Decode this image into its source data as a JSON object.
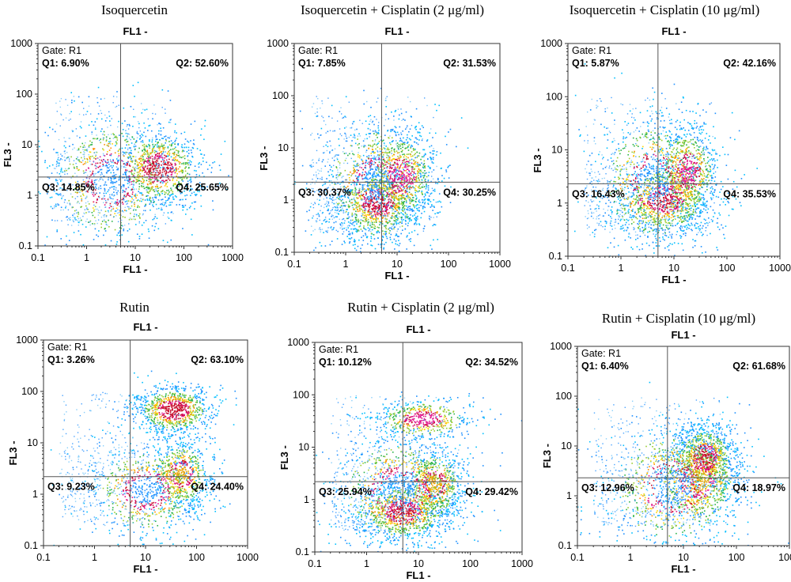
{
  "chart_data": [
    {
      "type": "scatter",
      "title": "Isoquercetin",
      "xlabel": "FL1 -",
      "x2label": "FL1 -",
      "ylabel": "FL3 -",
      "xscale": "log",
      "yscale": "log",
      "xlim": [
        0.1,
        1000
      ],
      "ylim": [
        0.1,
        1000
      ],
      "xticks": [
        "0.1",
        "1",
        "10",
        "100",
        "1000"
      ],
      "yticks": [
        "0.1",
        "1",
        "10",
        "100",
        "1000"
      ],
      "gate": "Gate: R1",
      "quadrant_divider": {
        "x": 5,
        "y": 2.3
      },
      "quadrants": {
        "Q1": "Q1: 6.90%",
        "Q2": "Q2: 52.60%",
        "Q3": "Q3: 14.85%",
        "Q4": "Q4: 25.65%"
      },
      "clusters": [
        {
          "x": 30,
          "y": 3.5,
          "spread_x": 0.45,
          "spread_y": 0.4,
          "weight": 1.0,
          "color": "#c8102e"
        },
        {
          "x": 3,
          "y": 2,
          "spread_x": 0.7,
          "spread_y": 0.7,
          "weight": 0.9,
          "color": "#1e90ff"
        }
      ]
    },
    {
      "type": "scatter",
      "title": "Isoquercetin + Cisplatin (2 μg/ml)",
      "xlabel": "FL1 -",
      "x2label": "FL1 -",
      "ylabel": "FL3 -",
      "xscale": "log",
      "yscale": "log",
      "xlim": [
        0.1,
        1000
      ],
      "ylim": [
        0.1,
        1000
      ],
      "xticks": [
        "0.1",
        "1",
        "10",
        "100",
        "1000"
      ],
      "yticks": [
        "0.1",
        "1",
        "10",
        "100",
        "1000"
      ],
      "gate": "Gate: R1",
      "quadrant_divider": {
        "x": 5,
        "y": 2.2
      },
      "quadrants": {
        "Q1": "Q1: 7.85%",
        "Q2": "Q2: 31.53%",
        "Q3": "Q3: 30.37%",
        "Q4": "Q4: 30.25%"
      },
      "clusters": [
        {
          "x": 4,
          "y": 0.9,
          "spread_x": 0.4,
          "spread_y": 0.35,
          "weight": 1.0,
          "color": "#c8102e"
        },
        {
          "x": 12,
          "y": 3,
          "spread_x": 0.35,
          "spread_y": 0.45,
          "weight": 0.8,
          "color": "#e0148c"
        },
        {
          "x": 4,
          "y": 2,
          "spread_x": 0.6,
          "spread_y": 0.7,
          "weight": 0.9,
          "color": "#1e90ff"
        }
      ]
    },
    {
      "type": "scatter",
      "title": "Isoquercetin + Cisplatin (10 μg/ml)",
      "xlabel": "FL1 -",
      "x2label": "FL1 -",
      "ylabel": "FL3 -",
      "xscale": "log",
      "yscale": "log",
      "xlim": [
        0.1,
        1000
      ],
      "ylim": [
        0.1,
        1000
      ],
      "xticks": [
        "0.1",
        "1",
        "10",
        "100",
        "1000"
      ],
      "yticks": [
        "0.1",
        "1",
        "10",
        "100",
        "1000"
      ],
      "gate": "Gate: R1",
      "quadrant_divider": {
        "x": 5,
        "y": 2.3
      },
      "quadrants": {
        "Q1": "Q1: 5.87%",
        "Q2": "Q2: 42.16%",
        "Q3": "Q3: 16.43%",
        "Q4": "Q4: 35.53%"
      },
      "clusters": [
        {
          "x": 7,
          "y": 1.2,
          "spread_x": 0.45,
          "spread_y": 0.35,
          "weight": 1.0,
          "color": "#c8102e"
        },
        {
          "x": 18,
          "y": 4,
          "spread_x": 0.3,
          "spread_y": 0.45,
          "weight": 0.8,
          "color": "#e0148c"
        },
        {
          "x": 4,
          "y": 2.5,
          "spread_x": 0.6,
          "spread_y": 0.7,
          "weight": 0.9,
          "color": "#1e90ff"
        }
      ]
    },
    {
      "type": "scatter",
      "title": "Rutin",
      "xlabel": "FL1 -",
      "x2label": "FL1 -",
      "ylabel": "FL3 -",
      "xscale": "log",
      "yscale": "log",
      "xlim": [
        0.1,
        1000
      ],
      "ylim": [
        0.1,
        1000
      ],
      "xticks": [
        "0.1",
        "1",
        "10",
        "100",
        "1000"
      ],
      "yticks": [
        "0.1",
        "1",
        "10",
        "100",
        "1000"
      ],
      "gate": "Gate: R1",
      "quadrant_divider": {
        "x": 5,
        "y": 2.2
      },
      "quadrants": {
        "Q1": "Q1: 3.26%",
        "Q2": "Q2: 63.10%",
        "Q3": "Q3: 9.23%",
        "Q4": "Q4: 24.40%"
      },
      "clusters": [
        {
          "x": 35,
          "y": 45,
          "spread_x": 0.4,
          "spread_y": 0.25,
          "weight": 1.0,
          "color": "#c8102e"
        },
        {
          "x": 50,
          "y": 2.5,
          "spread_x": 0.3,
          "spread_y": 0.35,
          "weight": 0.7,
          "color": "#e6a100"
        },
        {
          "x": 10,
          "y": 1.2,
          "spread_x": 0.6,
          "spread_y": 0.5,
          "weight": 0.8,
          "color": "#1e90ff"
        }
      ]
    },
    {
      "type": "scatter",
      "title": "Rutin + Cisplatin (2 μg/ml)",
      "xlabel": "FL1 -",
      "x2label": "FL1 -",
      "ylabel": "FL3 -",
      "xscale": "log",
      "yscale": "log",
      "xlim": [
        0.1,
        1000
      ],
      "ylim": [
        0.1,
        1000
      ],
      "xticks": [
        "0.1",
        "1",
        "10",
        "100",
        "1000"
      ],
      "yticks": [
        "0.1",
        "1",
        "10",
        "100",
        "1000"
      ],
      "gate": "Gate: R1",
      "quadrant_divider": {
        "x": 5,
        "y": 2.2
      },
      "quadrants": {
        "Q1": "Q1: 10.12%",
        "Q2": "Q2: 34.52%",
        "Q3": "Q3: 25.94%",
        "Q4": "Q4: 29.42%"
      },
      "clusters": [
        {
          "x": 5,
          "y": 0.6,
          "spread_x": 0.45,
          "spread_y": 0.3,
          "weight": 1.0,
          "color": "#c8102e"
        },
        {
          "x": 20,
          "y": 2,
          "spread_x": 0.3,
          "spread_y": 0.35,
          "weight": 0.7,
          "color": "#e6a100"
        },
        {
          "x": 12,
          "y": 35,
          "spread_x": 0.5,
          "spread_y": 0.2,
          "weight": 0.6,
          "color": "#e0148c"
        },
        {
          "x": 4,
          "y": 1.5,
          "spread_x": 0.7,
          "spread_y": 0.6,
          "weight": 0.9,
          "color": "#1e90ff"
        }
      ]
    },
    {
      "type": "scatter",
      "title": "Rutin + Cisplatin (10 μg/ml)",
      "xlabel": "FL1 -",
      "x2label": "FL1 -",
      "ylabel": "FL3 -",
      "xscale": "log",
      "yscale": "log",
      "xlim": [
        0.1,
        1000
      ],
      "ylim": [
        0.1,
        1000
      ],
      "xticks": [
        "0.1",
        "1",
        "10",
        "100",
        "1000"
      ],
      "yticks": [
        "0.1",
        "1",
        "10",
        "100",
        "1000"
      ],
      "gate": "Gate: R1",
      "quadrant_divider": {
        "x": 5,
        "y": 2.3
      },
      "quadrants": {
        "Q1": "Q1: 6.40%",
        "Q2": "Q2: 61.68%",
        "Q3": "Q3: 12.96%",
        "Q4": "Q4: 18.97%"
      },
      "clusters": [
        {
          "x": 25,
          "y": 6,
          "spread_x": 0.3,
          "spread_y": 0.35,
          "weight": 1.0,
          "color": "#c8102e"
        },
        {
          "x": 18,
          "y": 2,
          "spread_x": 0.45,
          "spread_y": 0.45,
          "weight": 0.8,
          "color": "#e6a100"
        },
        {
          "x": 6,
          "y": 1.5,
          "spread_x": 0.7,
          "spread_y": 0.7,
          "weight": 0.9,
          "color": "#1e90ff"
        }
      ]
    }
  ],
  "colors": {
    "axis": "#333333",
    "divider": "#555555",
    "scatter_low": "#1e90ff",
    "scatter_mid": "#32cd32",
    "scatter_high": "#c8102e"
  }
}
